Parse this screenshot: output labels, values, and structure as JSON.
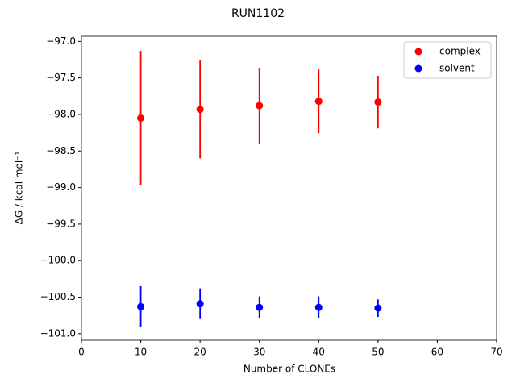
{
  "chart_data": {
    "type": "scatter",
    "title": "RUN1102",
    "x_label": "Number of CLONEs",
    "y_label": "ΔG / kcal mol⁻¹",
    "x": [
      10,
      20,
      30,
      40,
      50
    ],
    "series": [
      {
        "name": "complex",
        "color": "#ff0000",
        "values": [
          -98.05,
          -97.93,
          -97.88,
          -97.82,
          -97.83
        ],
        "errors": [
          0.92,
          0.67,
          0.52,
          0.44,
          0.36
        ]
      },
      {
        "name": "solvent",
        "color": "#0000ff",
        "values": [
          -100.63,
          -100.59,
          -100.64,
          -100.64,
          -100.65
        ],
        "errors": [
          0.28,
          0.21,
          0.15,
          0.15,
          0.12
        ]
      }
    ],
    "xlim": [
      0,
      70
    ],
    "xticks": [
      0,
      10,
      20,
      30,
      40,
      50,
      60,
      70
    ],
    "ylim": [
      -101.09,
      -96.93
    ],
    "yticks": [
      {
        "value": -97.0,
        "label": "−97.0"
      },
      {
        "value": -97.5,
        "label": "−97.5"
      },
      {
        "value": -98.0,
        "label": "−98.0"
      },
      {
        "value": -98.5,
        "label": "−98.5"
      },
      {
        "value": -99.0,
        "label": "−99.0"
      },
      {
        "value": -99.5,
        "label": "−99.5"
      },
      {
        "value": -100.0,
        "label": "−100.0"
      },
      {
        "value": -100.5,
        "label": "−100.5"
      },
      {
        "value": -101.0,
        "label": "−101.0"
      }
    ],
    "legend": "upper right"
  }
}
